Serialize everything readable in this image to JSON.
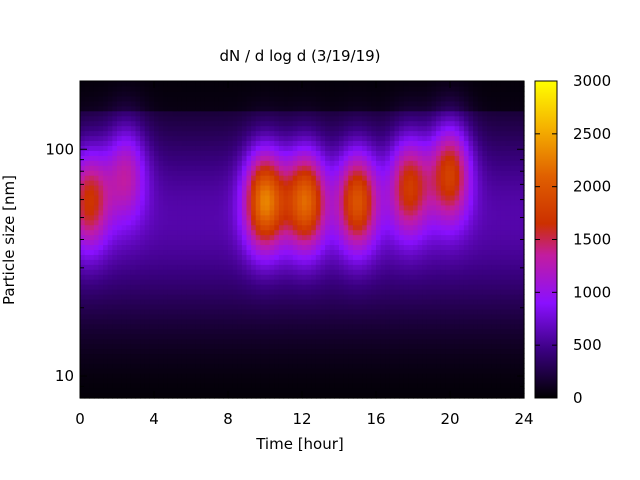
{
  "chart_data": {
    "type": "heatmap",
    "title": "dN / d log d (3/19/19)",
    "xlabel": "Time [hour]",
    "ylabel": "Particle size [nm]",
    "x_range": [
      0,
      24
    ],
    "y_range": [
      8,
      200
    ],
    "y_scale": "log",
    "z_range": [
      0,
      3000
    ],
    "x_ticks": [
      "0",
      "4",
      "8",
      "12",
      "16",
      "20",
      "24"
    ],
    "y_ticks": [
      "10",
      "100"
    ],
    "colorbar_ticks": [
      "0",
      "500",
      "1000",
      "1500",
      "2000",
      "2500",
      "3000"
    ],
    "colormap": "black-purple-red-orange-yellow",
    "events": [
      {
        "time": 0.5,
        "diameter": 60,
        "peak": 1700
      },
      {
        "time": 2.5,
        "diameter": 80,
        "peak": 1400
      },
      {
        "time": 10.0,
        "diameter": 60,
        "peak": 2300
      },
      {
        "time": 12.2,
        "diameter": 60,
        "peak": 2150
      },
      {
        "time": 15.0,
        "diameter": 60,
        "peak": 2000
      },
      {
        "time": 17.8,
        "diameter": 70,
        "peak": 1800
      },
      {
        "time": 20.0,
        "diameter": 80,
        "peak": 1900
      }
    ]
  }
}
